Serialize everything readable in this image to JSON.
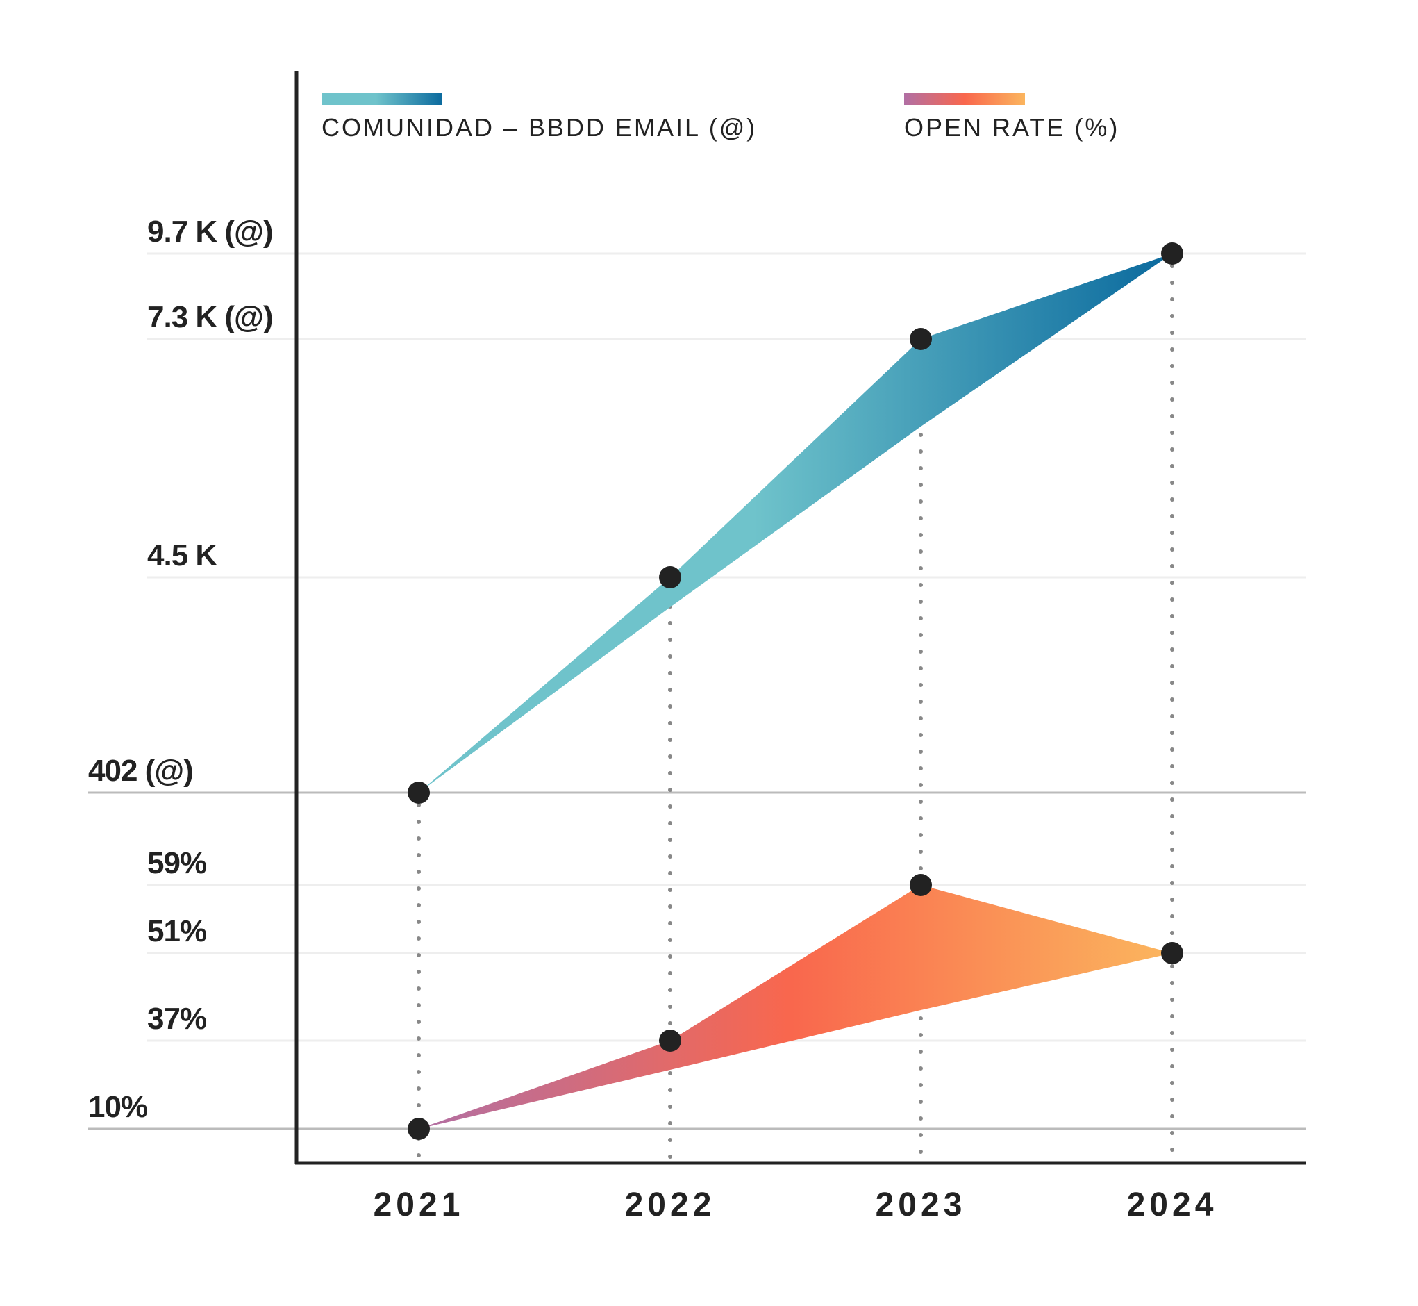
{
  "chart_data": {
    "type": "area",
    "categories": [
      "2021",
      "2022",
      "2023",
      "2024"
    ],
    "series": [
      {
        "name": "COMUNIDAD – BBDD EMAIL (@)",
        "values": [
          402,
          4500,
          7300,
          9700
        ],
        "unit": "@",
        "gradient": [
          "#6fc3cb",
          "#0b6a9e"
        ]
      },
      {
        "name": "OPEN RATE (%)",
        "values": [
          10,
          37,
          59,
          51
        ],
        "unit": "%",
        "gradient": [
          "#b16fa4",
          "#f9674d",
          "#fbb55e"
        ]
      }
    ],
    "y_tick_labels": {
      "community": [
        "402 (@)",
        "4.5 K",
        "7.3 K (@)",
        "9.7 K (@)"
      ],
      "open_rate": [
        "10%",
        "37%",
        "51%",
        "59%"
      ]
    },
    "legend_position": "top",
    "grid": true,
    "colors": {
      "axis": "#222222",
      "gridline": "#eeeeee",
      "baseline": "#bbbbbb",
      "dots": "#222222",
      "dotted_guides": "#888888"
    }
  }
}
